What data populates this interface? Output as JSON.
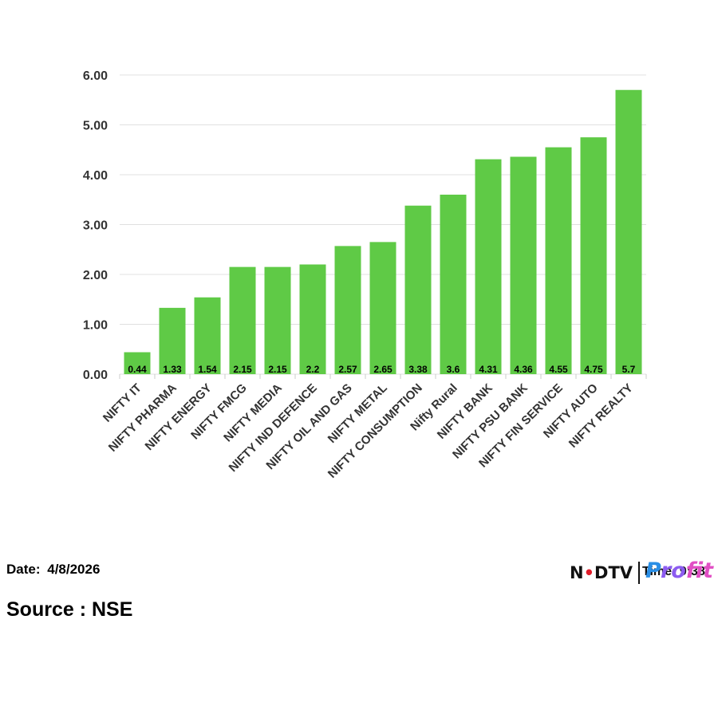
{
  "chart_data": {
    "type": "bar",
    "title": "",
    "xlabel": "",
    "ylabel": "",
    "ylim": [
      0,
      6
    ],
    "yticks": [
      "0.00",
      "1.00",
      "2.00",
      "3.00",
      "4.00",
      "5.00",
      "6.00"
    ],
    "grid": true,
    "bar_color": "#5fca46",
    "categories": [
      "NIFTY IT",
      "NIFTY PHARMA",
      "NIFTY ENERGY",
      "NIFTY FMCG",
      "NIFTY MEDIA",
      "NIFTY IND DEFENCE",
      "NIFTY OIL AND GAS",
      "NIFTY METAL",
      "NIFTY CONSUMPTION",
      "Nifty Rural",
      "NIFTY BANK",
      "NIFTY PSU BANK",
      "NIFTY FIN SERVICE",
      "NIFTY AUTO",
      "NIFTY REALTY"
    ],
    "values": [
      0.44,
      1.33,
      1.54,
      2.15,
      2.15,
      2.2,
      2.57,
      2.65,
      3.38,
      3.6,
      4.31,
      4.36,
      4.55,
      4.75,
      5.7
    ],
    "value_labels": [
      "0.44",
      "1.33",
      "1.54",
      "2.15",
      "2.15",
      "2.2",
      "2.57",
      "2.65",
      "3.38",
      "3.6",
      "4.31",
      "4.36",
      "4.55",
      "4.75",
      "5.7"
    ]
  },
  "footer": {
    "date_label": "Date:",
    "date_value": "4/8/2026",
    "source": "Source : NSE"
  },
  "logo": {
    "ndtv_n": "N",
    "ndtv_rest": "DTV",
    "time_text": "Time: 9:38",
    "profit_a": "P",
    "profit_b": "ro",
    "profit_c": "fit"
  }
}
